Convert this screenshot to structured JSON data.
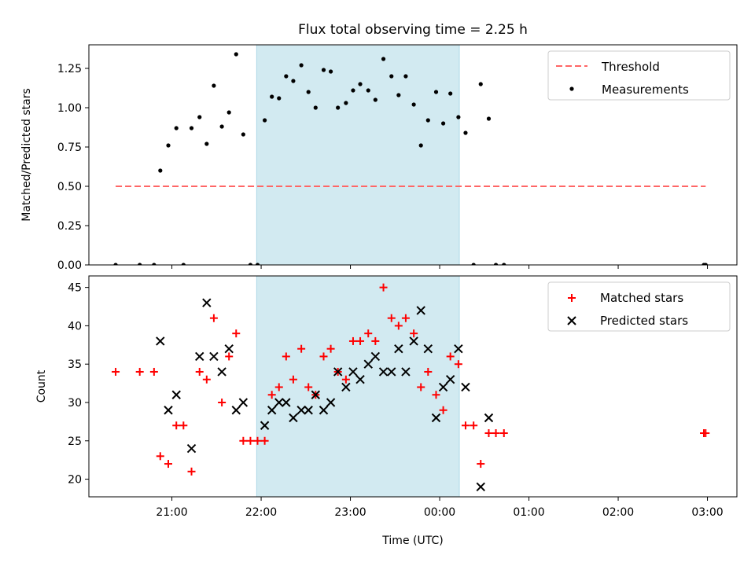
{
  "title": "Flux total observing time = 2.25 h",
  "xlabel": "Time (UTC)",
  "x_tick_labels": [
    "21:00",
    "22:00",
    "23:00",
    "00:00",
    "01:00",
    "02:00",
    "03:00"
  ],
  "colors": {
    "shade": "#add8e6",
    "threshold": "#ff6666",
    "matched": "#ff0000",
    "predicted": "#000000",
    "measurements": "#000000"
  },
  "chart_data": [
    {
      "type": "scatter",
      "ylabel": "Matched/Predicted stars",
      "x_unit": "hours since 21:00 UTC",
      "xlim": [
        -0.93,
        6.33
      ],
      "ylim": [
        0.0,
        1.4
      ],
      "y_ticks": [
        "0.00",
        "0.25",
        "0.50",
        "0.75",
        "1.00",
        "1.25"
      ],
      "shaded_interval": [
        0.95,
        3.22
      ],
      "legend": {
        "position": "upper right",
        "threshold_label": "Threshold",
        "measurements_label": "Measurements"
      },
      "threshold": {
        "value": 0.5,
        "x_range": [
          -0.63,
          5.98
        ]
      },
      "measurements": [
        [
          -0.63,
          0.0
        ],
        [
          -0.36,
          0.0
        ],
        [
          -0.2,
          0.0
        ],
        [
          -0.13,
          0.6
        ],
        [
          -0.04,
          0.76
        ],
        [
          0.05,
          0.87
        ],
        [
          0.13,
          0.0
        ],
        [
          0.22,
          0.87
        ],
        [
          0.31,
          0.94
        ],
        [
          0.39,
          0.77
        ],
        [
          0.47,
          1.14
        ],
        [
          0.56,
          0.88
        ],
        [
          0.64,
          0.97
        ],
        [
          0.72,
          1.34
        ],
        [
          0.8,
          0.83
        ],
        [
          0.88,
          0.0
        ],
        [
          0.96,
          0.0
        ],
        [
          1.04,
          0.92
        ],
        [
          1.12,
          1.07
        ],
        [
          1.2,
          1.06
        ],
        [
          1.28,
          1.2
        ],
        [
          1.36,
          1.17
        ],
        [
          1.45,
          1.27
        ],
        [
          1.53,
          1.1
        ],
        [
          1.61,
          1.0
        ],
        [
          1.7,
          1.24
        ],
        [
          1.78,
          1.23
        ],
        [
          1.86,
          1.0
        ],
        [
          1.95,
          1.03
        ],
        [
          2.03,
          1.11
        ],
        [
          2.11,
          1.15
        ],
        [
          2.2,
          1.11
        ],
        [
          2.28,
          1.05
        ],
        [
          2.37,
          1.31
        ],
        [
          2.46,
          1.2
        ],
        [
          2.54,
          1.08
        ],
        [
          2.62,
          1.2
        ],
        [
          2.71,
          1.02
        ],
        [
          2.79,
          0.76
        ],
        [
          2.87,
          0.92
        ],
        [
          2.96,
          1.1
        ],
        [
          3.04,
          0.9
        ],
        [
          3.12,
          1.09
        ],
        [
          3.21,
          0.94
        ],
        [
          3.29,
          0.84
        ],
        [
          3.38,
          0.0
        ],
        [
          3.46,
          1.15
        ],
        [
          3.55,
          0.93
        ],
        [
          3.63,
          0.0
        ],
        [
          3.72,
          0.0
        ],
        [
          5.96,
          0.0
        ],
        [
          5.98,
          0.0
        ]
      ]
    },
    {
      "type": "scatter",
      "ylabel": "Count",
      "x_unit": "hours since 21:00 UTC",
      "xlim": [
        -0.93,
        6.33
      ],
      "ylim": [
        17.7,
        46.5
      ],
      "y_ticks": [
        "20",
        "25",
        "30",
        "35",
        "40",
        "45"
      ],
      "shaded_interval": [
        0.95,
        3.22
      ],
      "legend": {
        "position": "upper right"
      },
      "series": [
        {
          "name": "Matched stars",
          "marker": "+",
          "points": [
            [
              -0.63,
              34
            ],
            [
              -0.36,
              34
            ],
            [
              -0.2,
              34
            ],
            [
              -0.13,
              23
            ],
            [
              -0.04,
              22
            ],
            [
              0.05,
              27
            ],
            [
              0.13,
              27
            ],
            [
              0.22,
              21
            ],
            [
              0.31,
              34
            ],
            [
              0.39,
              33
            ],
            [
              0.47,
              41
            ],
            [
              0.56,
              30
            ],
            [
              0.64,
              36
            ],
            [
              0.72,
              39
            ],
            [
              0.8,
              25
            ],
            [
              0.88,
              25
            ],
            [
              0.96,
              25
            ],
            [
              1.04,
              25
            ],
            [
              1.12,
              31
            ],
            [
              1.2,
              32
            ],
            [
              1.28,
              36
            ],
            [
              1.36,
              33
            ],
            [
              1.45,
              37
            ],
            [
              1.53,
              32
            ],
            [
              1.61,
              31
            ],
            [
              1.7,
              36
            ],
            [
              1.78,
              37
            ],
            [
              1.86,
              34
            ],
            [
              1.95,
              33
            ],
            [
              2.03,
              38
            ],
            [
              2.11,
              38
            ],
            [
              2.2,
              39
            ],
            [
              2.28,
              38
            ],
            [
              2.37,
              45
            ],
            [
              2.46,
              41
            ],
            [
              2.54,
              40
            ],
            [
              2.62,
              41
            ],
            [
              2.71,
              39
            ],
            [
              2.79,
              32
            ],
            [
              2.87,
              34
            ],
            [
              2.96,
              31
            ],
            [
              3.04,
              29
            ],
            [
              3.12,
              36
            ],
            [
              3.21,
              35
            ],
            [
              3.29,
              27
            ],
            [
              3.38,
              27
            ],
            [
              3.46,
              22
            ],
            [
              3.55,
              26
            ],
            [
              3.63,
              26
            ],
            [
              3.72,
              26
            ],
            [
              5.96,
              26
            ],
            [
              5.98,
              26
            ]
          ]
        },
        {
          "name": "Predicted stars",
          "marker": "x",
          "points": [
            [
              -0.13,
              38
            ],
            [
              -0.04,
              29
            ],
            [
              0.05,
              31
            ],
            [
              0.22,
              24
            ],
            [
              0.31,
              36
            ],
            [
              0.39,
              43
            ],
            [
              0.47,
              36
            ],
            [
              0.56,
              34
            ],
            [
              0.64,
              37
            ],
            [
              0.72,
              29
            ],
            [
              0.8,
              30
            ],
            [
              1.04,
              27
            ],
            [
              1.12,
              29
            ],
            [
              1.2,
              30
            ],
            [
              1.28,
              30
            ],
            [
              1.36,
              28
            ],
            [
              1.45,
              29
            ],
            [
              1.53,
              29
            ],
            [
              1.61,
              31
            ],
            [
              1.7,
              29
            ],
            [
              1.78,
              30
            ],
            [
              1.86,
              34
            ],
            [
              1.95,
              32
            ],
            [
              2.03,
              34
            ],
            [
              2.11,
              33
            ],
            [
              2.2,
              35
            ],
            [
              2.28,
              36
            ],
            [
              2.37,
              34
            ],
            [
              2.46,
              34
            ],
            [
              2.54,
              37
            ],
            [
              2.62,
              34
            ],
            [
              2.71,
              38
            ],
            [
              2.79,
              42
            ],
            [
              2.87,
              37
            ],
            [
              2.96,
              28
            ],
            [
              3.04,
              32
            ],
            [
              3.12,
              33
            ],
            [
              3.21,
              37
            ],
            [
              3.29,
              32
            ],
            [
              3.46,
              19
            ],
            [
              3.55,
              28
            ]
          ]
        }
      ]
    }
  ]
}
